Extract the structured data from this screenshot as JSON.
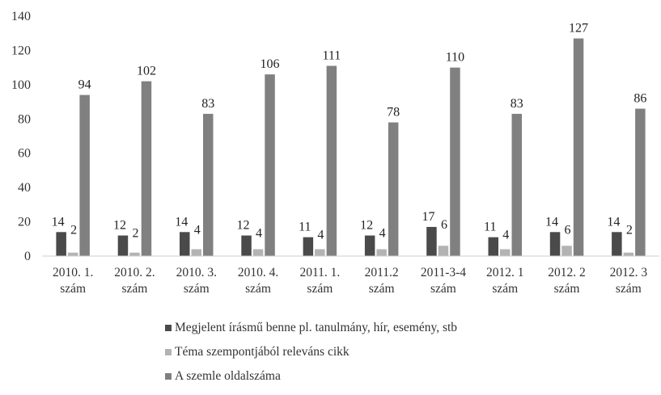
{
  "chart_data": {
    "type": "bar",
    "categories": [
      [
        "2010. 1.",
        "szám"
      ],
      [
        "2010. 2.",
        "szám"
      ],
      [
        "2010. 3.",
        "szám"
      ],
      [
        "2010. 4.",
        "szám"
      ],
      [
        "2011. 1.",
        "szám"
      ],
      [
        "2011.2",
        "szám"
      ],
      [
        "2011-3-4",
        "szám"
      ],
      [
        "2012. 1",
        "szám"
      ],
      [
        "2012. 2",
        "szám"
      ],
      [
        "2012. 3",
        "szám"
      ]
    ],
    "series": [
      {
        "name": "Megjelent írásmű benne pl. tanulmány, hír, esemény, stb",
        "color": "#4a4a4a",
        "values": [
          14,
          12,
          14,
          12,
          11,
          12,
          17,
          11,
          14,
          14
        ]
      },
      {
        "name": "Téma szempontjából releváns cikk",
        "color": "#b3b3b3",
        "values": [
          2,
          2,
          4,
          4,
          4,
          4,
          6,
          4,
          6,
          2
        ]
      },
      {
        "name": "A szemle oldalszáma",
        "color": "#808080",
        "values": [
          94,
          102,
          83,
          106,
          111,
          78,
          110,
          83,
          127,
          86
        ]
      }
    ],
    "ylim": [
      0,
      140
    ],
    "yticks": [
      0,
      20,
      40,
      60,
      80,
      100,
      120,
      140
    ],
    "grid": false,
    "legend_position": "bottom",
    "data_labels": true
  }
}
